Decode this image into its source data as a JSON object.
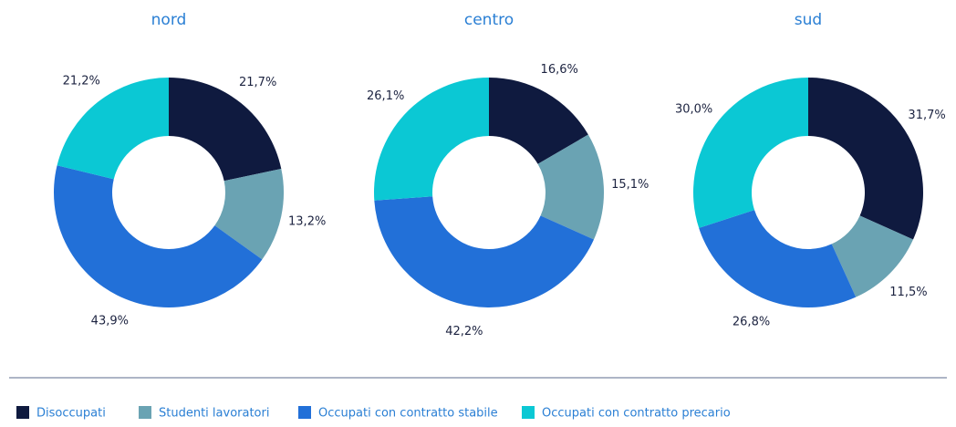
{
  "chart_data": [
    {
      "type": "donut",
      "title": "nord",
      "values": [
        21.7,
        13.2,
        43.9,
        21.2
      ],
      "value_labels": [
        "21,7%",
        "13,2%",
        "43,9%",
        "21,2%"
      ]
    },
    {
      "type": "donut",
      "title": "centro",
      "values": [
        16.6,
        15.1,
        42.2,
        26.1
      ],
      "value_labels": [
        "16,6%",
        "15,1%",
        "42,2%",
        "26,1%"
      ]
    },
    {
      "type": "donut",
      "title": "sud",
      "values": [
        31.7,
        11.5,
        26.8,
        30.0
      ],
      "value_labels": [
        "31,7%",
        "11,5%",
        "26,8%",
        "30,0%"
      ]
    }
  ],
  "legend": {
    "labels": [
      "Disoccupati",
      "Studenti lavoratori",
      "Occupati con contratto stabile",
      "Occupati con contratto precario"
    ],
    "colors": [
      "#0f1a3f",
      "#6aa3b3",
      "#2270d8",
      "#0bc8d4"
    ]
  }
}
